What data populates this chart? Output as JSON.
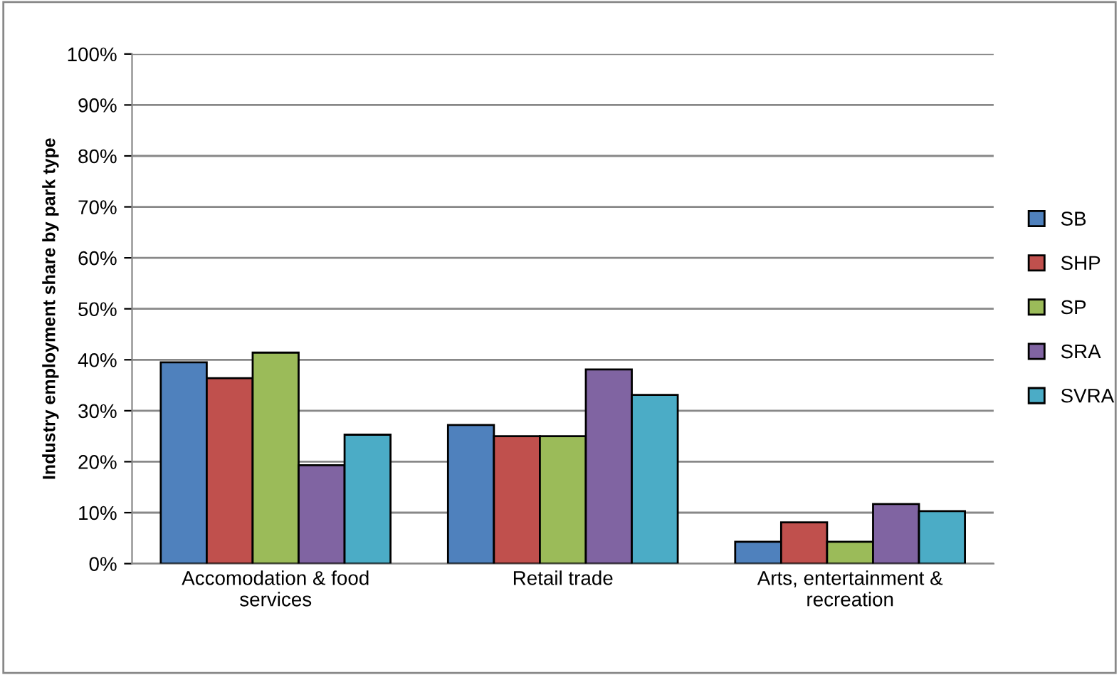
{
  "chart_data": {
    "type": "bar",
    "ylabel": "Industry employment share by park type",
    "categories": [
      "Accomodation & food\nservices",
      "Retail trade",
      "Arts, entertainment &\nrecreation"
    ],
    "series": [
      {
        "name": "SB",
        "color": "#4f81bd",
        "values": [
          39.5,
          27.2,
          4.3
        ]
      },
      {
        "name": "SHP",
        "color": "#c0504d",
        "values": [
          36.4,
          25,
          8.1
        ]
      },
      {
        "name": "SP",
        "color": "#9bbb59",
        "values": [
          41.4,
          25,
          4.3
        ]
      },
      {
        "name": "SRA",
        "color": "#8064a2",
        "values": [
          19.3,
          38.1,
          11.7
        ]
      },
      {
        "name": "SVRA",
        "color": "#4bacc6",
        "values": [
          25.3,
          33.1,
          10.3
        ]
      }
    ],
    "ylim": [
      0,
      100
    ],
    "yticks": [
      {
        "value": 0,
        "label": "0%"
      },
      {
        "value": 10,
        "label": "10%"
      },
      {
        "value": 20,
        "label": "20%"
      },
      {
        "value": 30,
        "label": "30%"
      },
      {
        "value": 40,
        "label": "40%"
      },
      {
        "value": 50,
        "label": "50%"
      },
      {
        "value": 60,
        "label": "60%"
      },
      {
        "value": 70,
        "label": "70%"
      },
      {
        "value": 80,
        "label": "80%"
      },
      {
        "value": 90,
        "label": "90%"
      },
      {
        "value": 100,
        "label": "100%"
      }
    ],
    "grid": "y",
    "legend": "right"
  }
}
